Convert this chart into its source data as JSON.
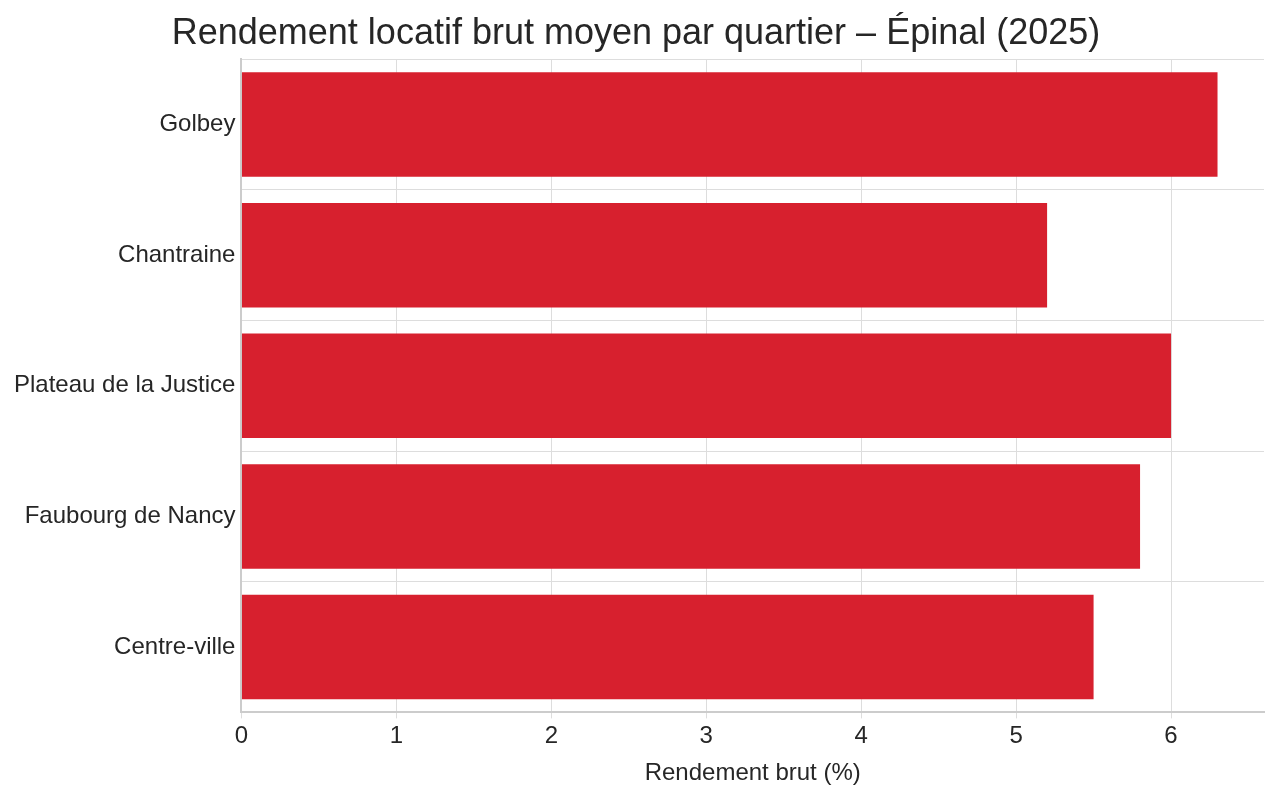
{
  "chart_data": {
    "type": "bar",
    "orientation": "horizontal",
    "title": "Rendement locatif brut moyen par quartier – Épinal (2025)",
    "xlabel": "Rendement brut (%)",
    "categories": [
      "Golbey",
      "Chantraine",
      "Plateau de la Justice",
      "Faubourg de Nancy",
      "Centre-ville"
    ],
    "values": [
      6.3,
      5.2,
      6.0,
      5.8,
      5.5
    ],
    "color": "#d7202e",
    "xlim": [
      0,
      6.6
    ],
    "xticks": [
      0,
      1,
      2,
      3,
      4,
      5,
      6
    ],
    "grid": true,
    "legend": false
  }
}
